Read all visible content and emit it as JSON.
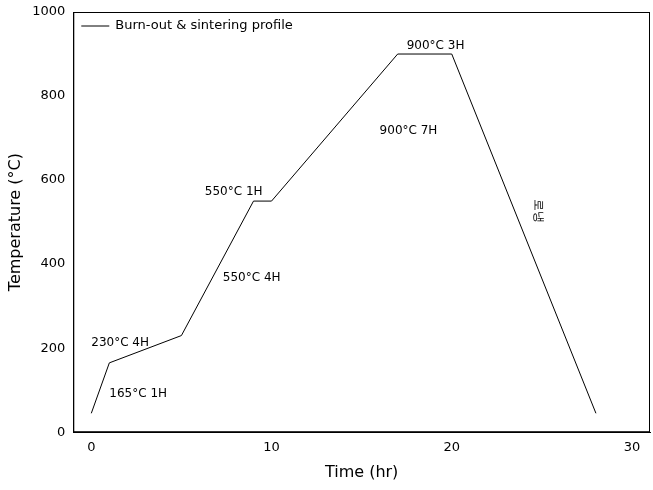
{
  "chart_data": {
    "type": "line",
    "x_label": "Time (hr)",
    "y_label": "Temperature (°C)",
    "x": [
      0,
      1,
      5,
      9,
      10,
      17,
      20,
      28
    ],
    "series": [
      {
        "name": "Burn-out & sintering profile",
        "color": "#000000",
        "values": [
          45,
          165,
          230,
          550,
          550,
          900,
          900,
          45
        ]
      }
    ],
    "xlim": [
      -1,
      31
    ],
    "xticks": [
      0,
      10,
      20,
      30
    ],
    "ylim": [
      0,
      1000
    ],
    "yticks": [
      0,
      200,
      400,
      600,
      800,
      1000
    ],
    "grid": false,
    "legend": "upper left",
    "annotations": [
      {
        "text": "165°C 1H",
        "x": 2.6,
        "y": 91
      },
      {
        "text": "230°C 4H",
        "x": 1.6,
        "y": 213
      },
      {
        "text": "550°C 4H",
        "x": 8.9,
        "y": 368
      },
      {
        "text": "550°C 1H",
        "x": 7.9,
        "y": 571
      },
      {
        "text": "900°C 7H",
        "x": 17.6,
        "y": 716
      },
      {
        "text": "900°C 3H",
        "x": 19.1,
        "y": 919
      },
      {
        "text": "로냉",
        "x": 24.8,
        "y": 527,
        "orientation": "vertical"
      }
    ]
  }
}
